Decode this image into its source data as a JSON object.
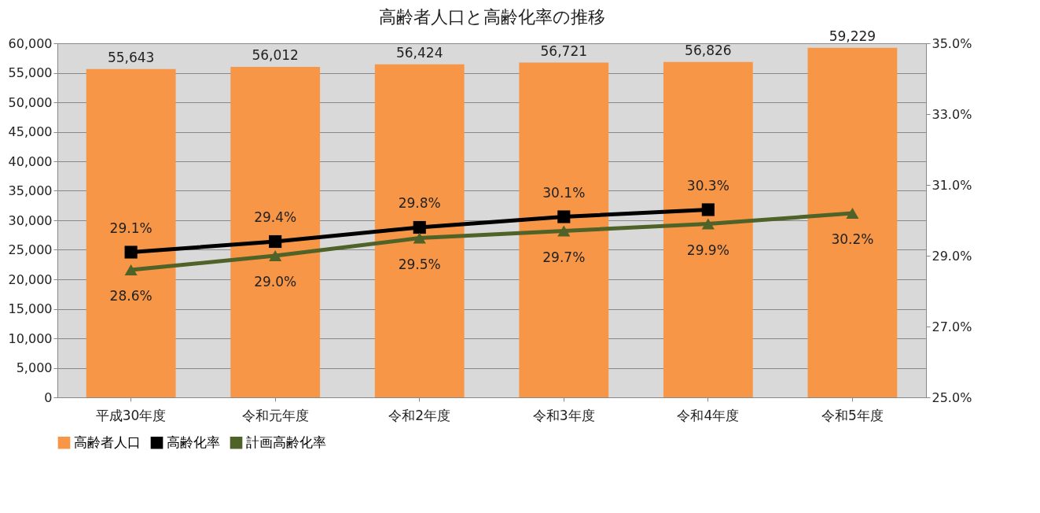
{
  "chart_data": {
    "type": "bar",
    "title": "高齢者人口と高齢化率の推移",
    "categories": [
      "平成30年度",
      "令和元年度",
      "令和2年度",
      "令和3年度",
      "令和4年度",
      "令和5年度"
    ],
    "series": [
      {
        "name": "高齢者人口",
        "color": "#f79646",
        "values": [
          55643,
          56012,
          56424,
          56721,
          56826,
          59229
        ],
        "value_labels": [
          "55,643",
          "56,012",
          "56,424",
          "56,721",
          "56,826",
          "59,229"
        ]
      },
      {
        "name": "高齢化率",
        "type": "line",
        "axis": "y2",
        "color": "#000000",
        "marker": "square",
        "values": [
          29.1,
          29.4,
          29.8,
          30.1,
          30.3,
          null
        ],
        "value_labels": [
          "29.1%",
          "29.4%",
          "29.8%",
          "30.1%",
          "30.3%",
          null
        ]
      },
      {
        "name": "計画高齢化率",
        "type": "line",
        "axis": "y2",
        "color": "#4f6228",
        "marker": "triangle",
        "values": [
          28.6,
          29.0,
          29.5,
          29.7,
          29.9,
          30.2
        ],
        "value_labels": [
          "28.6%",
          "29.0%",
          "29.5%",
          "29.7%",
          "29.9%",
          "30.2%"
        ]
      }
    ],
    "ylim": [
      0,
      60000
    ],
    "yticks": [
      0,
      {
        "value": 5000,
        "label": "5,000"
      },
      {
        "value": 10000,
        "label": "10,000"
      },
      {
        "value": 15000,
        "label": "15,000"
      },
      {
        "value": 20000,
        "label": "20,000"
      },
      {
        "value": 25000,
        "label": "25,000"
      },
      {
        "value": 30000,
        "label": "30,000"
      },
      {
        "value": 35000,
        "label": "35,000"
      },
      {
        "value": 40000,
        "label": "40,000"
      },
      {
        "value": 45000,
        "label": "45,000"
      },
      {
        "value": 50000,
        "label": "50,000"
      },
      {
        "value": 55000,
        "label": "55,000"
      },
      {
        "value": 60000,
        "label": "60,000"
      }
    ],
    "y2lim": [
      25,
      35
    ],
    "y2ticks": [
      {
        "value": 25,
        "label": "25.0%"
      },
      {
        "value": 27,
        "label": "27.0%"
      },
      {
        "value": 29,
        "label": "29.0%"
      },
      {
        "value": 31,
        "label": "31.0%"
      },
      {
        "value": 33,
        "label": "33.0%"
      },
      {
        "value": 35,
        "label": "35.0%"
      }
    ],
    "grid": "y",
    "legend": "bottom"
  }
}
